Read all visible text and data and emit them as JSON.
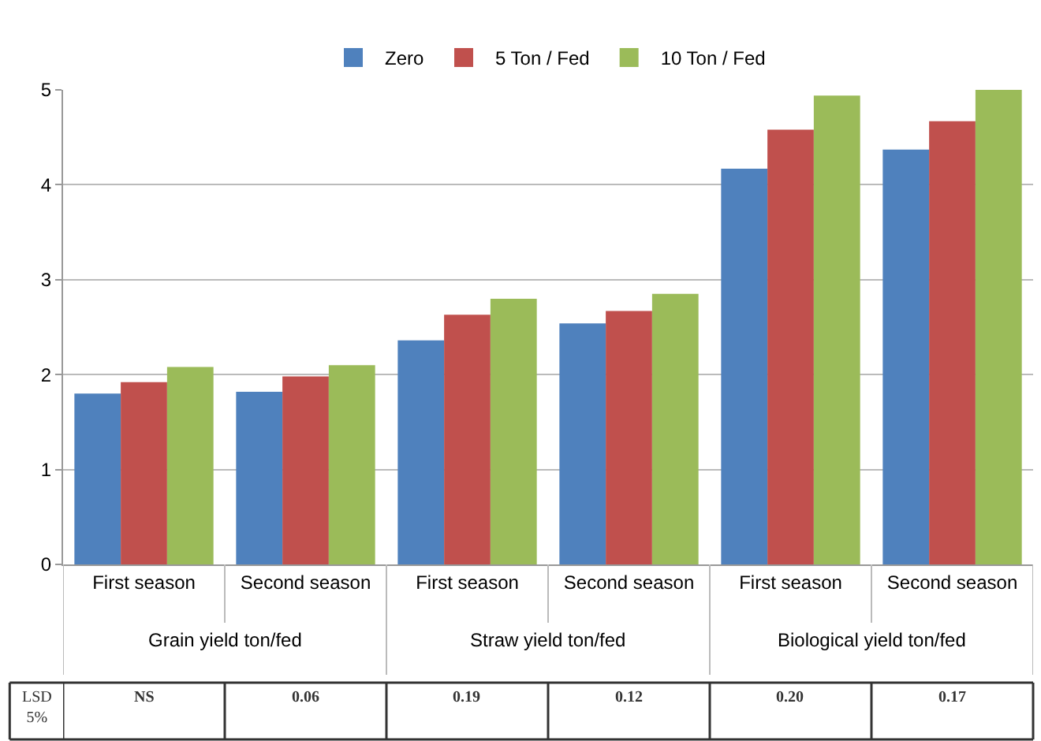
{
  "chart_data": {
    "type": "bar",
    "categories": [
      "First season",
      "Second season",
      "First season",
      "Second season",
      "First season",
      "Second season"
    ],
    "series": [
      {
        "name": "Zero",
        "color": "#4f81bd",
        "values": [
          1.8,
          1.82,
          2.36,
          2.54,
          4.17,
          4.37
        ]
      },
      {
        "name": "5 Ton / Fed",
        "color": "#c0504d",
        "values": [
          1.92,
          1.98,
          2.63,
          2.67,
          4.58,
          4.67
        ]
      },
      {
        "name": "10 Ton / Fed",
        "color": "#9bbb59",
        "values": [
          2.08,
          2.1,
          2.8,
          2.85,
          4.94,
          5.0
        ]
      }
    ],
    "ylim": [
      0,
      5
    ],
    "yticks": [
      0,
      1,
      2,
      3,
      4,
      5
    ],
    "grid": "y",
    "legend": "top",
    "annotations": [
      "Grain yield ton/fed",
      "Straw yield ton/fed",
      "Biological yield ton/fed",
      "LSD 5%",
      "NS",
      "0.06",
      "0.19",
      "0.12",
      "0.20",
      "0.17"
    ]
  }
}
